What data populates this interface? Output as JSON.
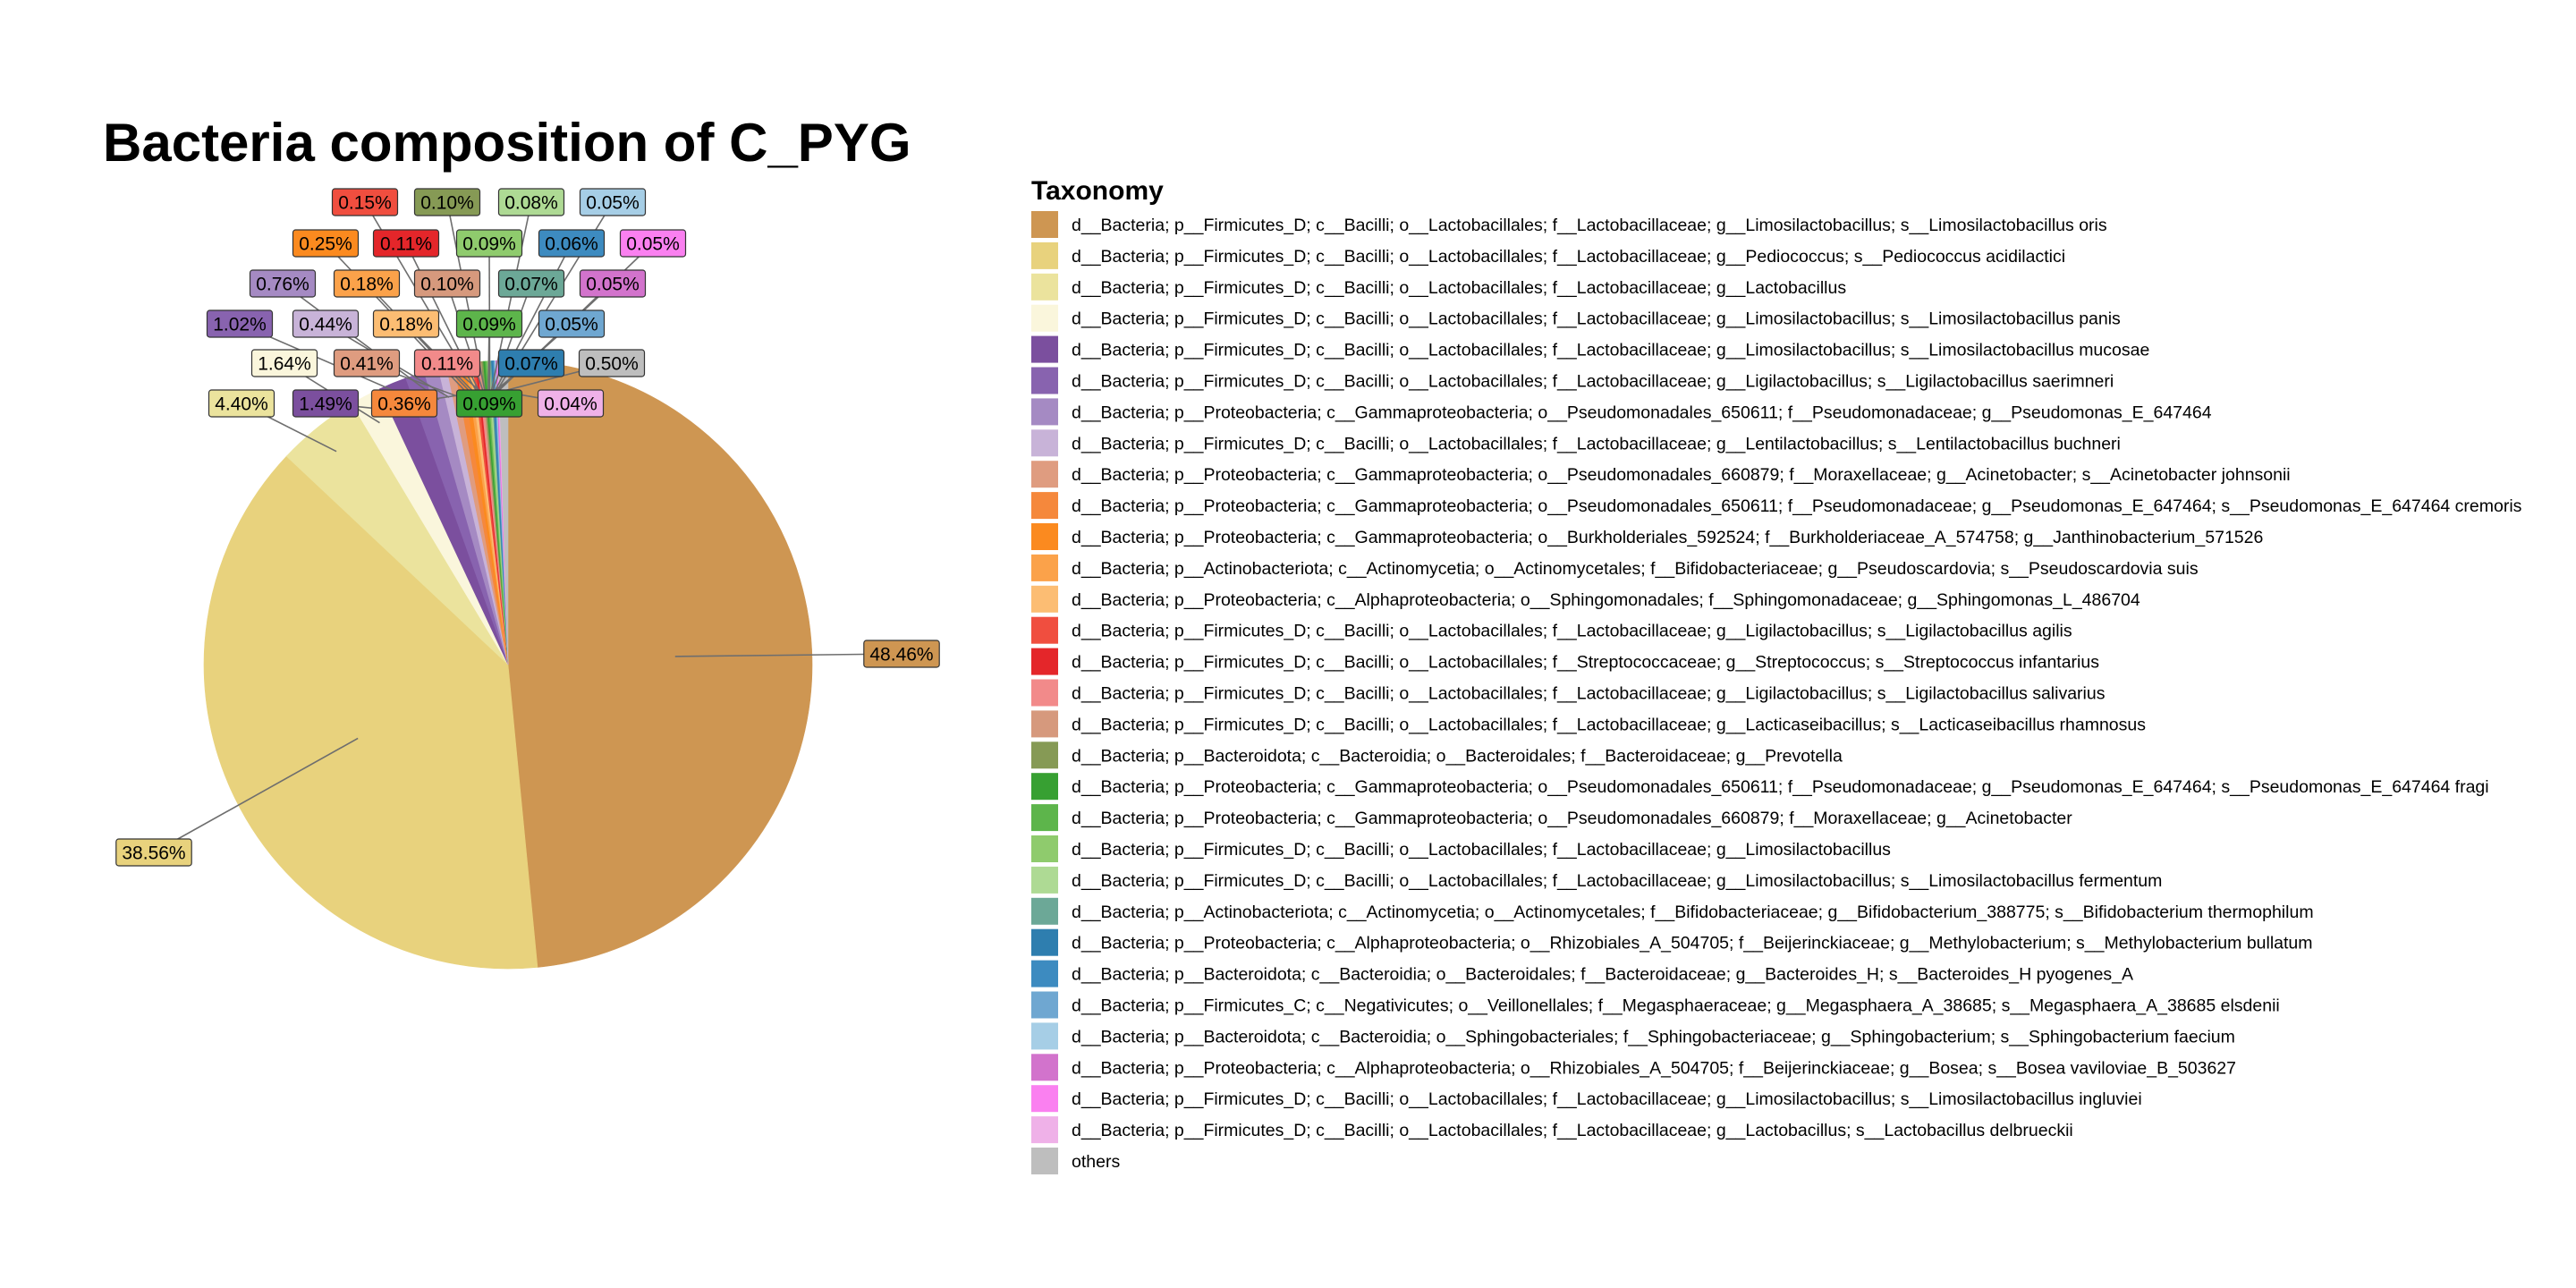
{
  "chart_data": {
    "type": "pie",
    "title": "Bacteria composition of C_PYG",
    "legend_title": "Taxonomy",
    "legend_placement": "right",
    "slices": [
      {
        "name": "d__Bacteria; p__Firmicutes_D; c__Bacilli; o__Lactobacillales; f__Lactobacillaceae; g__Limosilactobacillus; s__Limosilactobacillus oris",
        "value": 48.46,
        "label": "48.46%",
        "color": "#CE9652"
      },
      {
        "name": "d__Bacteria; p__Firmicutes_D; c__Bacilli; o__Lactobacillales; f__Lactobacillaceae; g__Pediococcus; s__Pediococcus acidilactici",
        "value": 38.56,
        "label": "38.56%",
        "color": "#E8D27D"
      },
      {
        "name": "d__Bacteria; p__Firmicutes_D; c__Bacilli; o__Lactobacillales; f__Lactobacillaceae; g__Lactobacillus",
        "value": 4.4,
        "label": "4.40%",
        "color": "#EBE39D"
      },
      {
        "name": "d__Bacteria; p__Firmicutes_D; c__Bacilli; o__Lactobacillales; f__Lactobacillaceae; g__Limosilactobacillus; s__Limosilactobacillus panis",
        "value": 1.64,
        "label": "1.64%",
        "color": "#FAF6DC"
      },
      {
        "name": "d__Bacteria; p__Firmicutes_D; c__Bacilli; o__Lactobacillales; f__Lactobacillaceae; g__Limosilactobacillus; s__Limosilactobacillus mucosae",
        "value": 1.49,
        "label": "1.49%",
        "color": "#7B4F9E"
      },
      {
        "name": "d__Bacteria; p__Firmicutes_D; c__Bacilli; o__Lactobacillales; f__Lactobacillaceae; g__Ligilactobacillus; s__Ligilactobacillus saerimneri",
        "value": 1.02,
        "label": "1.02%",
        "color": "#8863AF"
      },
      {
        "name": "d__Bacteria; p__Proteobacteria; c__Gammaproteobacteria; o__Pseudomonadales_650611; f__Pseudomonadaceae; g__Pseudomonas_E_647464",
        "value": 0.76,
        "label": "0.76%",
        "color": "#A58AC3"
      },
      {
        "name": "d__Bacteria; p__Firmicutes_D; c__Bacilli; o__Lactobacillales; f__Lactobacillaceae; g__Lentilactobacillus; s__Lentilactobacillus buchneri",
        "value": 0.44,
        "label": "0.44%",
        "color": "#C8B3D8"
      },
      {
        "name": "d__Bacteria; p__Proteobacteria; c__Gammaproteobacteria; o__Pseudomonadales_660879; f__Moraxellaceae; g__Acinetobacter; s__Acinetobacter johnsonii",
        "value": 0.41,
        "label": "0.41%",
        "color": "#DF9C80"
      },
      {
        "name": "d__Bacteria; p__Proteobacteria; c__Gammaproteobacteria; o__Pseudomonadales_650611; f__Pseudomonadaceae; g__Pseudomonas_E_647464; s__Pseudomonas_E_647464 cremoris",
        "value": 0.36,
        "label": "0.36%",
        "color": "#F5883C"
      },
      {
        "name": "d__Bacteria; p__Proteobacteria; c__Gammaproteobacteria; o__Burkholderiales_592524; f__Burkholderiaceae_A_574758; g__Janthinobacterium_571526",
        "value": 0.25,
        "label": "0.25%",
        "color": "#FB8A1F"
      },
      {
        "name": "d__Bacteria; p__Actinobacteriota; c__Actinomycetia; o__Actinomycetales; f__Bifidobacteriaceae; g__Pseudoscardovia; s__Pseudoscardovia suis",
        "value": 0.18,
        "label": "0.18%",
        "color": "#FBA24A"
      },
      {
        "name": "d__Bacteria; p__Proteobacteria; c__Alphaproteobacteria; o__Sphingomonadales; f__Sphingomonadaceae; g__Sphingomonas_L_486704",
        "value": 0.18,
        "label": "0.18%",
        "color": "#FCBD73"
      },
      {
        "name": "d__Bacteria; p__Firmicutes_D; c__Bacilli; o__Lactobacillales; f__Lactobacillaceae; g__Ligilactobacillus; s__Ligilactobacillus agilis",
        "value": 0.15,
        "label": "0.15%",
        "color": "#F04E3F"
      },
      {
        "name": "d__Bacteria; p__Firmicutes_D; c__Bacilli; o__Lactobacillales; f__Streptococcaceae; g__Streptococcus; s__Streptococcus infantarius",
        "value": 0.11,
        "label": "0.11%",
        "color": "#E4262A"
      },
      {
        "name": "d__Bacteria; p__Firmicutes_D; c__Bacilli; o__Lactobacillales; f__Lactobacillaceae; g__Ligilactobacillus; s__Ligilactobacillus salivarius",
        "value": 0.11,
        "label": "0.11%",
        "color": "#F28A8A"
      },
      {
        "name": "d__Bacteria; p__Firmicutes_D; c__Bacilli; o__Lactobacillales; f__Lactobacillaceae; g__Lacticaseibacillus; s__Lacticaseibacillus rhamnosus",
        "value": 0.1,
        "label": "0.10%",
        "color": "#D6997D"
      },
      {
        "name": "d__Bacteria; p__Bacteroidota; c__Bacteroidia; o__Bacteroidales; f__Bacteroidaceae; g__Prevotella",
        "value": 0.1,
        "label": "0.10%",
        "color": "#869A55"
      },
      {
        "name": "d__Bacteria; p__Proteobacteria; c__Gammaproteobacteria; o__Pseudomonadales_650611; f__Pseudomonadaceae; g__Pseudomonas_E_647464; s__Pseudomonas_E_647464 fragi",
        "value": 0.09,
        "label": "0.09%",
        "color": "#37A032"
      },
      {
        "name": "d__Bacteria; p__Proteobacteria; c__Gammaproteobacteria; o__Pseudomonadales_660879; f__Moraxellaceae; g__Acinetobacter",
        "value": 0.09,
        "label": "0.09%",
        "color": "#5DB54B"
      },
      {
        "name": "d__Bacteria; p__Firmicutes_D; c__Bacilli; o__Lactobacillales; f__Lactobacillaceae; g__Limosilactobacillus",
        "value": 0.09,
        "label": "0.09%",
        "color": "#8FCB6D"
      },
      {
        "name": "d__Bacteria; p__Firmicutes_D; c__Bacilli; o__Lactobacillales; f__Lactobacillaceae; g__Limosilactobacillus; s__Limosilactobacillus fermentum",
        "value": 0.08,
        "label": "0.08%",
        "color": "#AEDA94"
      },
      {
        "name": "d__Bacteria; p__Actinobacteriota; c__Actinomycetia; o__Actinomycetales; f__Bifidobacteriaceae; g__Bifidobacterium_388775; s__Bifidobacterium thermophilum",
        "value": 0.07,
        "label": "0.07%",
        "color": "#6CA897"
      },
      {
        "name": "d__Bacteria; p__Proteobacteria; c__Alphaproteobacteria; o__Rhizobiales_A_504705; f__Beijerinckiaceae; g__Methylobacterium; s__Methylobacterium bullatum",
        "value": 0.07,
        "label": "0.07%",
        "color": "#2E7EAF"
      },
      {
        "name": "d__Bacteria; p__Bacteroidota; c__Bacteroidia; o__Bacteroidales; f__Bacteroidaceae; g__Bacteroides_H; s__Bacteroides_H pyogenes_A",
        "value": 0.06,
        "label": "0.06%",
        "color": "#3D8BC0"
      },
      {
        "name": "d__Bacteria; p__Firmicutes_C; c__Negativicutes; o__Veillonellales; f__Megasphaeraceae; g__Megasphaera_A_38685; s__Megasphaera_A_38685 elsdenii",
        "value": 0.05,
        "label": "0.05%",
        "color": "#6FA7D1"
      },
      {
        "name": "d__Bacteria; p__Bacteroidota; c__Bacteroidia; o__Sphingobacteriales; f__Sphingobacteriaceae; g__Sphingobacterium; s__Sphingobacterium faecium",
        "value": 0.05,
        "label": "0.05%",
        "color": "#A6CEE6"
      },
      {
        "name": "d__Bacteria; p__Proteobacteria; c__Alphaproteobacteria; o__Rhizobiales_A_504705; f__Beijerinckiaceae; g__Bosea; s__Bosea vaviloviae_B_503627",
        "value": 0.05,
        "label": "0.05%",
        "color": "#D273CC"
      },
      {
        "name": "d__Bacteria; p__Firmicutes_D; c__Bacilli; o__Lactobacillales; f__Lactobacillaceae; g__Limosilactobacillus; s__Limosilactobacillus ingluviei",
        "value": 0.05,
        "label": "0.05%",
        "color": "#FA80F0"
      },
      {
        "name": "d__Bacteria; p__Firmicutes_D; c__Bacilli; o__Lactobacillales; f__Lactobacillaceae; g__Lactobacillus; s__Lactobacillus delbrueckii",
        "value": 0.04,
        "label": "0.04%",
        "color": "#EFB1E8"
      },
      {
        "name": "others",
        "value": 0.5,
        "label": "0.50%",
        "color": "#BEBEBE"
      }
    ]
  }
}
